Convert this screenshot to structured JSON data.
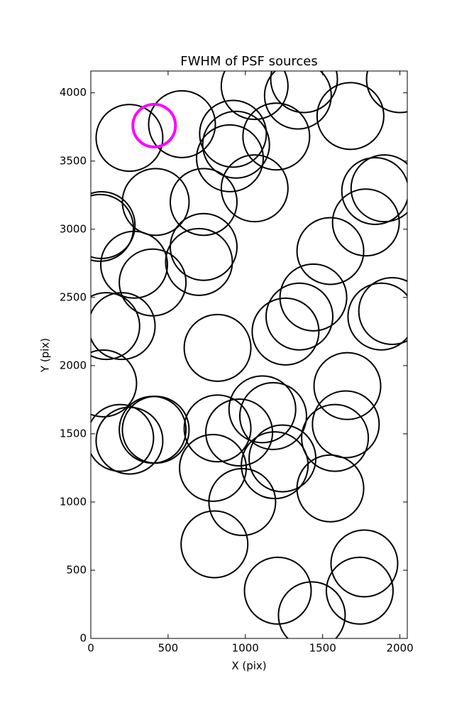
{
  "chart_data": {
    "type": "scatter",
    "title": "FWHM of PSF sources",
    "x_label": "X (pix)",
    "y_label": "Y (pix)",
    "x": [
      250,
      590,
      920,
      940,
      900,
      1060,
      1060,
      1200,
      1340,
      1380,
      1680,
      2000,
      1900,
      1840,
      1780,
      420,
      730,
      70,
      60,
      730,
      700,
      280,
      400,
      1550,
      1440,
      1350,
      1260,
      1950,
      1880,
      100,
      200,
      820,
      80,
      1660,
      1110,
      1180,
      1650,
      1580,
      420,
      400,
      190,
      250,
      820,
      960,
      790,
      1240,
      1190,
      1550,
      980,
      800,
      1210,
      1430,
      1770,
      1740
    ],
    "values": [
      3670,
      3770,
      3700,
      3620,
      3520,
      3300,
      4050,
      3680,
      3980,
      4100,
      3830,
      4100,
      3300,
      3280,
      3050,
      3200,
      3200,
      3030,
      3010,
      2870,
      2760,
      2740,
      2610,
      2840,
      2500,
      2360,
      2250,
      2400,
      2360,
      2290,
      2290,
      2130,
      1870,
      1850,
      1680,
      1630,
      1570,
      1470,
      1530,
      1530,
      1470,
      1450,
      1540,
      1510,
      1250,
      1320,
      1270,
      1100,
      1000,
      690,
      350,
      170,
      550,
      350
    ],
    "color": "#000000",
    "highlight": {
      "x": 410,
      "y": 3760,
      "color": "#ff00ff"
    },
    "xlim": [
      0,
      2048
    ],
    "ylim": [
      0,
      4160
    ],
    "xticks": [
      0,
      500,
      1000,
      1500,
      2000
    ],
    "yticks": [
      0,
      500,
      1000,
      1500,
      2000,
      2500,
      3000,
      3500,
      4000
    ]
  }
}
